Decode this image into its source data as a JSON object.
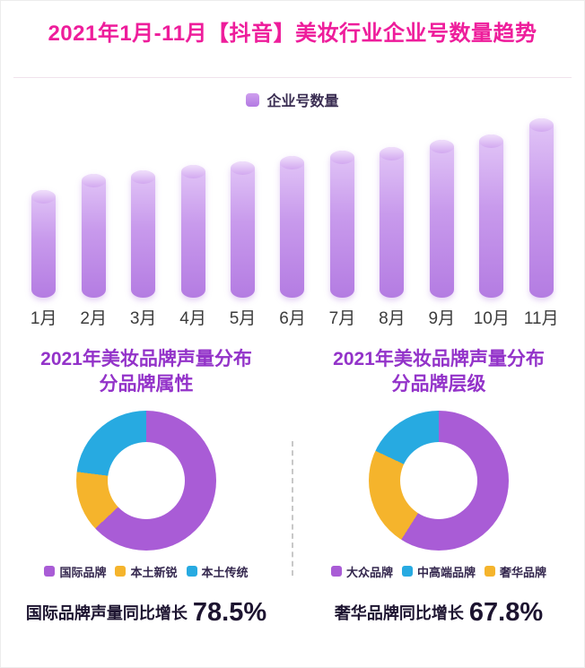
{
  "header": {
    "title": "2021年1月-11月【抖音】美妆行业企业号数量趋势"
  },
  "bar_section": {
    "legend_label": "企业号数量"
  },
  "left_panel": {
    "title_line1": "2021年美妆品牌声量分布",
    "title_line2": "分品牌属性",
    "growth_label": "国际品牌声量同比增长",
    "growth_value": "78.5%"
  },
  "right_panel": {
    "title_line1": "2021年美妆品牌声量分布",
    "title_line2": "分品牌层级",
    "growth_label": "奢华品牌同比增长",
    "growth_value": "67.8%"
  },
  "colors": {
    "title_pink": "#ee1d9b",
    "bar_purple": "#b87ce3",
    "donut_purple": "#a95cd6",
    "yellow": "#f5b42c",
    "blue": "#27aae1",
    "section_title_purple": "#9333c9"
  },
  "chart_data": [
    {
      "type": "bar",
      "title": "2021年1月-11月【抖音】美妆行业企业号数量趋势",
      "categories": [
        "1月",
        "2月",
        "3月",
        "4月",
        "5月",
        "6月",
        "7月",
        "8月",
        "9月",
        "10月",
        "11月"
      ],
      "values": [
        60,
        69,
        71,
        74,
        76,
        79,
        82,
        84,
        88,
        91,
        100
      ],
      "legend": [
        "企业号数量"
      ],
      "xlabel": "",
      "ylabel": "",
      "ylim": [
        0,
        100
      ],
      "grid": false,
      "legend_position": "top-center"
    },
    {
      "type": "pie",
      "subtype": "donut",
      "title": "2021年美妆品牌声量分布 分品牌属性",
      "labels": [
        "国际品牌",
        "本土新锐",
        "本土传统"
      ],
      "values": [
        63,
        14,
        23
      ],
      "colors": [
        "#a95cd6",
        "#f5b42c",
        "#27aae1"
      ],
      "draw_order": [
        0,
        1,
        2
      ],
      "legend_position": "bottom",
      "annotation": "国际品牌声量同比增长 78.5%"
    },
    {
      "type": "pie",
      "subtype": "donut",
      "title": "2021年美妆品牌声量分布 分品牌层级",
      "labels": [
        "大众品牌",
        "中高端品牌",
        "奢华品牌"
      ],
      "values": [
        59,
        18,
        23
      ],
      "colors": [
        "#a95cd6",
        "#27aae1",
        "#f5b42c"
      ],
      "draw_order": [
        0,
        2,
        1
      ],
      "legend_position": "bottom",
      "annotation": "奢华品牌同比增长 67.8%"
    }
  ]
}
